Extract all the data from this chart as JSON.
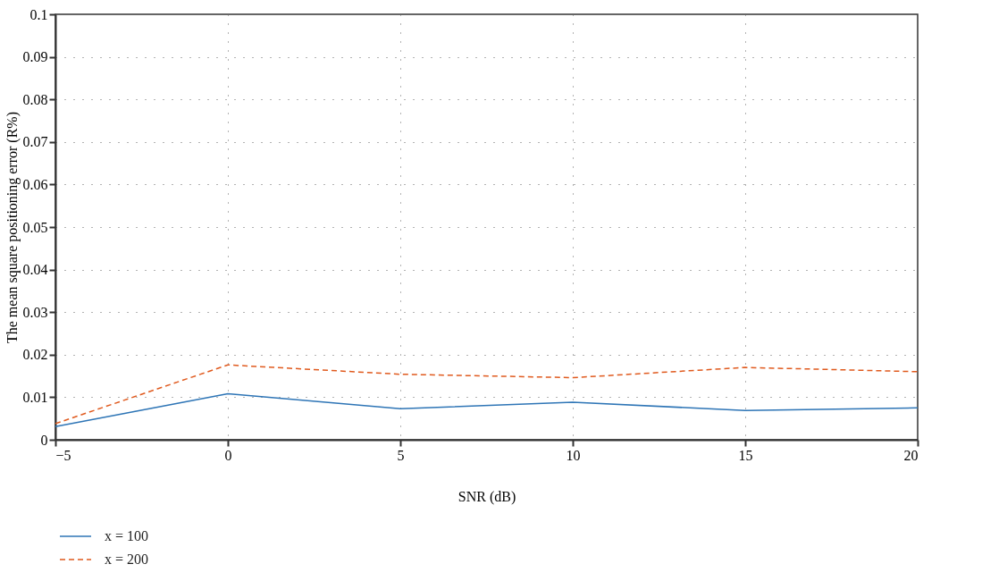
{
  "chart_data": {
    "type": "line",
    "xlabel": "SNR (dB)",
    "ylabel": "The mean square positioning error (R%)",
    "x": [
      -5,
      0,
      5,
      10,
      15,
      20
    ],
    "series": [
      {
        "name": "x = 100",
        "color": "#2e75b6",
        "line_style": "solid",
        "values": [
          0.0031,
          0.0108,
          0.0073,
          0.0088,
          0.0069,
          0.0075
        ]
      },
      {
        "name": "x = 200",
        "color": "#e05a1e",
        "line_style": "dashed",
        "values": [
          0.0038,
          0.0176,
          0.0154,
          0.0146,
          0.017,
          0.016
        ]
      }
    ],
    "xlim": [
      -5,
      20
    ],
    "xticks": [
      -5,
      0,
      5,
      10,
      15,
      20
    ],
    "ylim": [
      0,
      0.1
    ],
    "yticks": [
      0,
      0.01,
      0.02,
      0.03,
      0.04,
      0.05,
      0.06,
      0.07,
      0.08,
      0.09,
      0.1
    ],
    "grid": true,
    "legend": "bottom left",
    "marker": "none"
  }
}
